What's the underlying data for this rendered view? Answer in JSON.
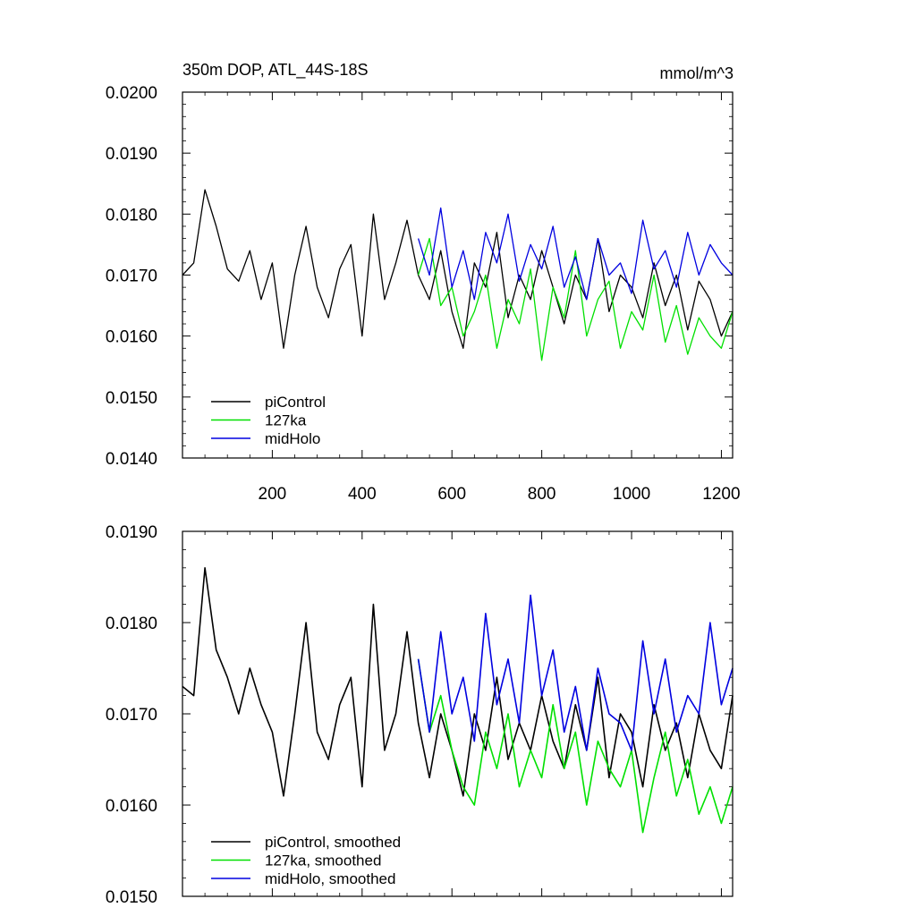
{
  "chart_data": [
    {
      "type": "line",
      "title": "350m DOP, ATL_44S-18S",
      "units": "mmol/m^3",
      "xlim": [
        0,
        1225
      ],
      "ylim": [
        0.014,
        0.02
      ],
      "xticks": [
        200,
        400,
        600,
        800,
        1000,
        1200
      ],
      "xtick_labels": [
        "200",
        "400",
        "600",
        "800",
        "1000",
        "1200"
      ],
      "yticks": [
        0.014,
        0.015,
        0.016,
        0.017,
        0.018,
        0.019,
        0.02
      ],
      "ytick_labels": [
        "0.0140",
        "0.0150",
        "0.0160",
        "0.0170",
        "0.0180",
        "0.0190",
        "0.0200"
      ],
      "legend_position": "bottom-left",
      "series": [
        {
          "name": "piControl",
          "color": "#000000",
          "x": [
            0,
            25,
            50,
            75,
            100,
            125,
            150,
            175,
            200,
            225,
            250,
            275,
            300,
            325,
            350,
            375,
            400,
            425,
            450,
            475,
            500,
            525,
            550,
            575,
            600,
            625,
            650,
            675,
            700,
            725,
            750,
            775,
            800,
            825,
            850,
            875,
            900,
            925,
            950,
            975,
            1000,
            1025,
            1050,
            1075,
            1100,
            1125,
            1150,
            1175,
            1200,
            1225
          ],
          "y": [
            0.017,
            0.0172,
            0.0184,
            0.0178,
            0.0171,
            0.0169,
            0.0174,
            0.0166,
            0.0172,
            0.0158,
            0.017,
            0.0178,
            0.0168,
            0.0163,
            0.0171,
            0.0175,
            0.016,
            0.018,
            0.0166,
            0.0172,
            0.0179,
            0.017,
            0.0166,
            0.0174,
            0.0164,
            0.0158,
            0.0172,
            0.0168,
            0.0177,
            0.0163,
            0.017,
            0.0166,
            0.0174,
            0.0168,
            0.0162,
            0.017,
            0.0166,
            0.0176,
            0.0164,
            0.017,
            0.0168,
            0.0163,
            0.0172,
            0.0165,
            0.017,
            0.0161,
            0.0169,
            0.0166,
            0.016,
            0.0164
          ]
        },
        {
          "name": "127ka",
          "color": "#00e000",
          "x": [
            525,
            550,
            575,
            600,
            625,
            650,
            675,
            700,
            725,
            750,
            775,
            800,
            825,
            850,
            875,
            900,
            925,
            950,
            975,
            1000,
            1025,
            1050,
            1075,
            1100,
            1125,
            1150,
            1175,
            1200,
            1225
          ],
          "y": [
            0.017,
            0.0176,
            0.0165,
            0.0168,
            0.016,
            0.0164,
            0.017,
            0.0158,
            0.0166,
            0.0162,
            0.0171,
            0.0156,
            0.0168,
            0.0163,
            0.0174,
            0.016,
            0.0166,
            0.0169,
            0.0158,
            0.0164,
            0.0161,
            0.017,
            0.0159,
            0.0165,
            0.0157,
            0.0163,
            0.016,
            0.0158,
            0.0164
          ]
        },
        {
          "name": "midHolo",
          "color": "#0000e0",
          "x": [
            525,
            550,
            575,
            600,
            625,
            650,
            675,
            700,
            725,
            750,
            775,
            800,
            825,
            850,
            875,
            900,
            925,
            950,
            975,
            1000,
            1025,
            1050,
            1075,
            1100,
            1125,
            1150,
            1175,
            1200,
            1225
          ],
          "y": [
            0.0176,
            0.017,
            0.0181,
            0.0168,
            0.0174,
            0.0166,
            0.0177,
            0.0172,
            0.018,
            0.0169,
            0.0175,
            0.0171,
            0.0178,
            0.0168,
            0.0173,
            0.0166,
            0.0176,
            0.017,
            0.0172,
            0.0167,
            0.0179,
            0.0171,
            0.0174,
            0.0168,
            0.0177,
            0.017,
            0.0175,
            0.0172,
            0.017
          ]
        }
      ]
    },
    {
      "type": "line",
      "xlim": [
        0,
        1225
      ],
      "ylim": [
        0.015,
        0.019
      ],
      "xticks": [
        200,
        400,
        600,
        800,
        1000,
        1200
      ],
      "yticks": [
        0.015,
        0.016,
        0.017,
        0.018,
        0.019
      ],
      "ytick_labels": [
        "0.0150",
        "0.0160",
        "0.0170",
        "0.0180",
        "0.0190"
      ],
      "legend_position": "bottom-left",
      "series": [
        {
          "name": "piControl, smoothed",
          "color": "#000000",
          "x": [
            0,
            25,
            50,
            75,
            100,
            125,
            150,
            175,
            200,
            225,
            250,
            275,
            300,
            325,
            350,
            375,
            400,
            425,
            450,
            475,
            500,
            525,
            550,
            575,
            600,
            625,
            650,
            675,
            700,
            725,
            750,
            775,
            800,
            825,
            850,
            875,
            900,
            925,
            950,
            975,
            1000,
            1025,
            1050,
            1075,
            1100,
            1125,
            1150,
            1175,
            1200,
            1225
          ],
          "y": [
            0.0173,
            0.0172,
            0.0186,
            0.0177,
            0.0174,
            0.017,
            0.0175,
            0.0171,
            0.0168,
            0.0161,
            0.017,
            0.018,
            0.0168,
            0.0165,
            0.0171,
            0.0174,
            0.0162,
            0.0182,
            0.0166,
            0.017,
            0.0179,
            0.0169,
            0.0163,
            0.017,
            0.0166,
            0.0161,
            0.017,
            0.0166,
            0.0174,
            0.0165,
            0.0169,
            0.0166,
            0.0172,
            0.0167,
            0.0164,
            0.0171,
            0.0166,
            0.0174,
            0.0163,
            0.017,
            0.0168,
            0.0162,
            0.0171,
            0.0166,
            0.0169,
            0.0163,
            0.017,
            0.0166,
            0.0164,
            0.0172
          ]
        },
        {
          "name": "127ka, smoothed",
          "color": "#00e000",
          "x": [
            525,
            550,
            575,
            600,
            625,
            650,
            675,
            700,
            725,
            750,
            775,
            800,
            825,
            850,
            875,
            900,
            925,
            950,
            975,
            1000,
            1025,
            1050,
            1075,
            1100,
            1125,
            1150,
            1175,
            1200,
            1225
          ],
          "y": [
            0.0176,
            0.0168,
            0.0172,
            0.0166,
            0.0162,
            0.016,
            0.0168,
            0.0164,
            0.017,
            0.0162,
            0.0166,
            0.0163,
            0.0171,
            0.0164,
            0.0168,
            0.016,
            0.0167,
            0.0164,
            0.0162,
            0.0166,
            0.0157,
            0.0163,
            0.0168,
            0.0161,
            0.0165,
            0.0159,
            0.0162,
            0.0158,
            0.0162
          ]
        },
        {
          "name": "midHolo, smoothed",
          "color": "#0000e0",
          "x": [
            525,
            550,
            575,
            600,
            625,
            650,
            675,
            700,
            725,
            750,
            775,
            800,
            825,
            850,
            875,
            900,
            925,
            950,
            975,
            1000,
            1025,
            1050,
            1075,
            1100,
            1125,
            1150,
            1175,
            1200,
            1225
          ],
          "y": [
            0.0176,
            0.0168,
            0.0179,
            0.017,
            0.0174,
            0.0167,
            0.0181,
            0.0171,
            0.0176,
            0.0169,
            0.0183,
            0.0172,
            0.0177,
            0.0168,
            0.0173,
            0.0166,
            0.0175,
            0.017,
            0.0169,
            0.0166,
            0.0178,
            0.017,
            0.0176,
            0.0168,
            0.0172,
            0.017,
            0.018,
            0.0171,
            0.0175
          ]
        }
      ]
    }
  ]
}
